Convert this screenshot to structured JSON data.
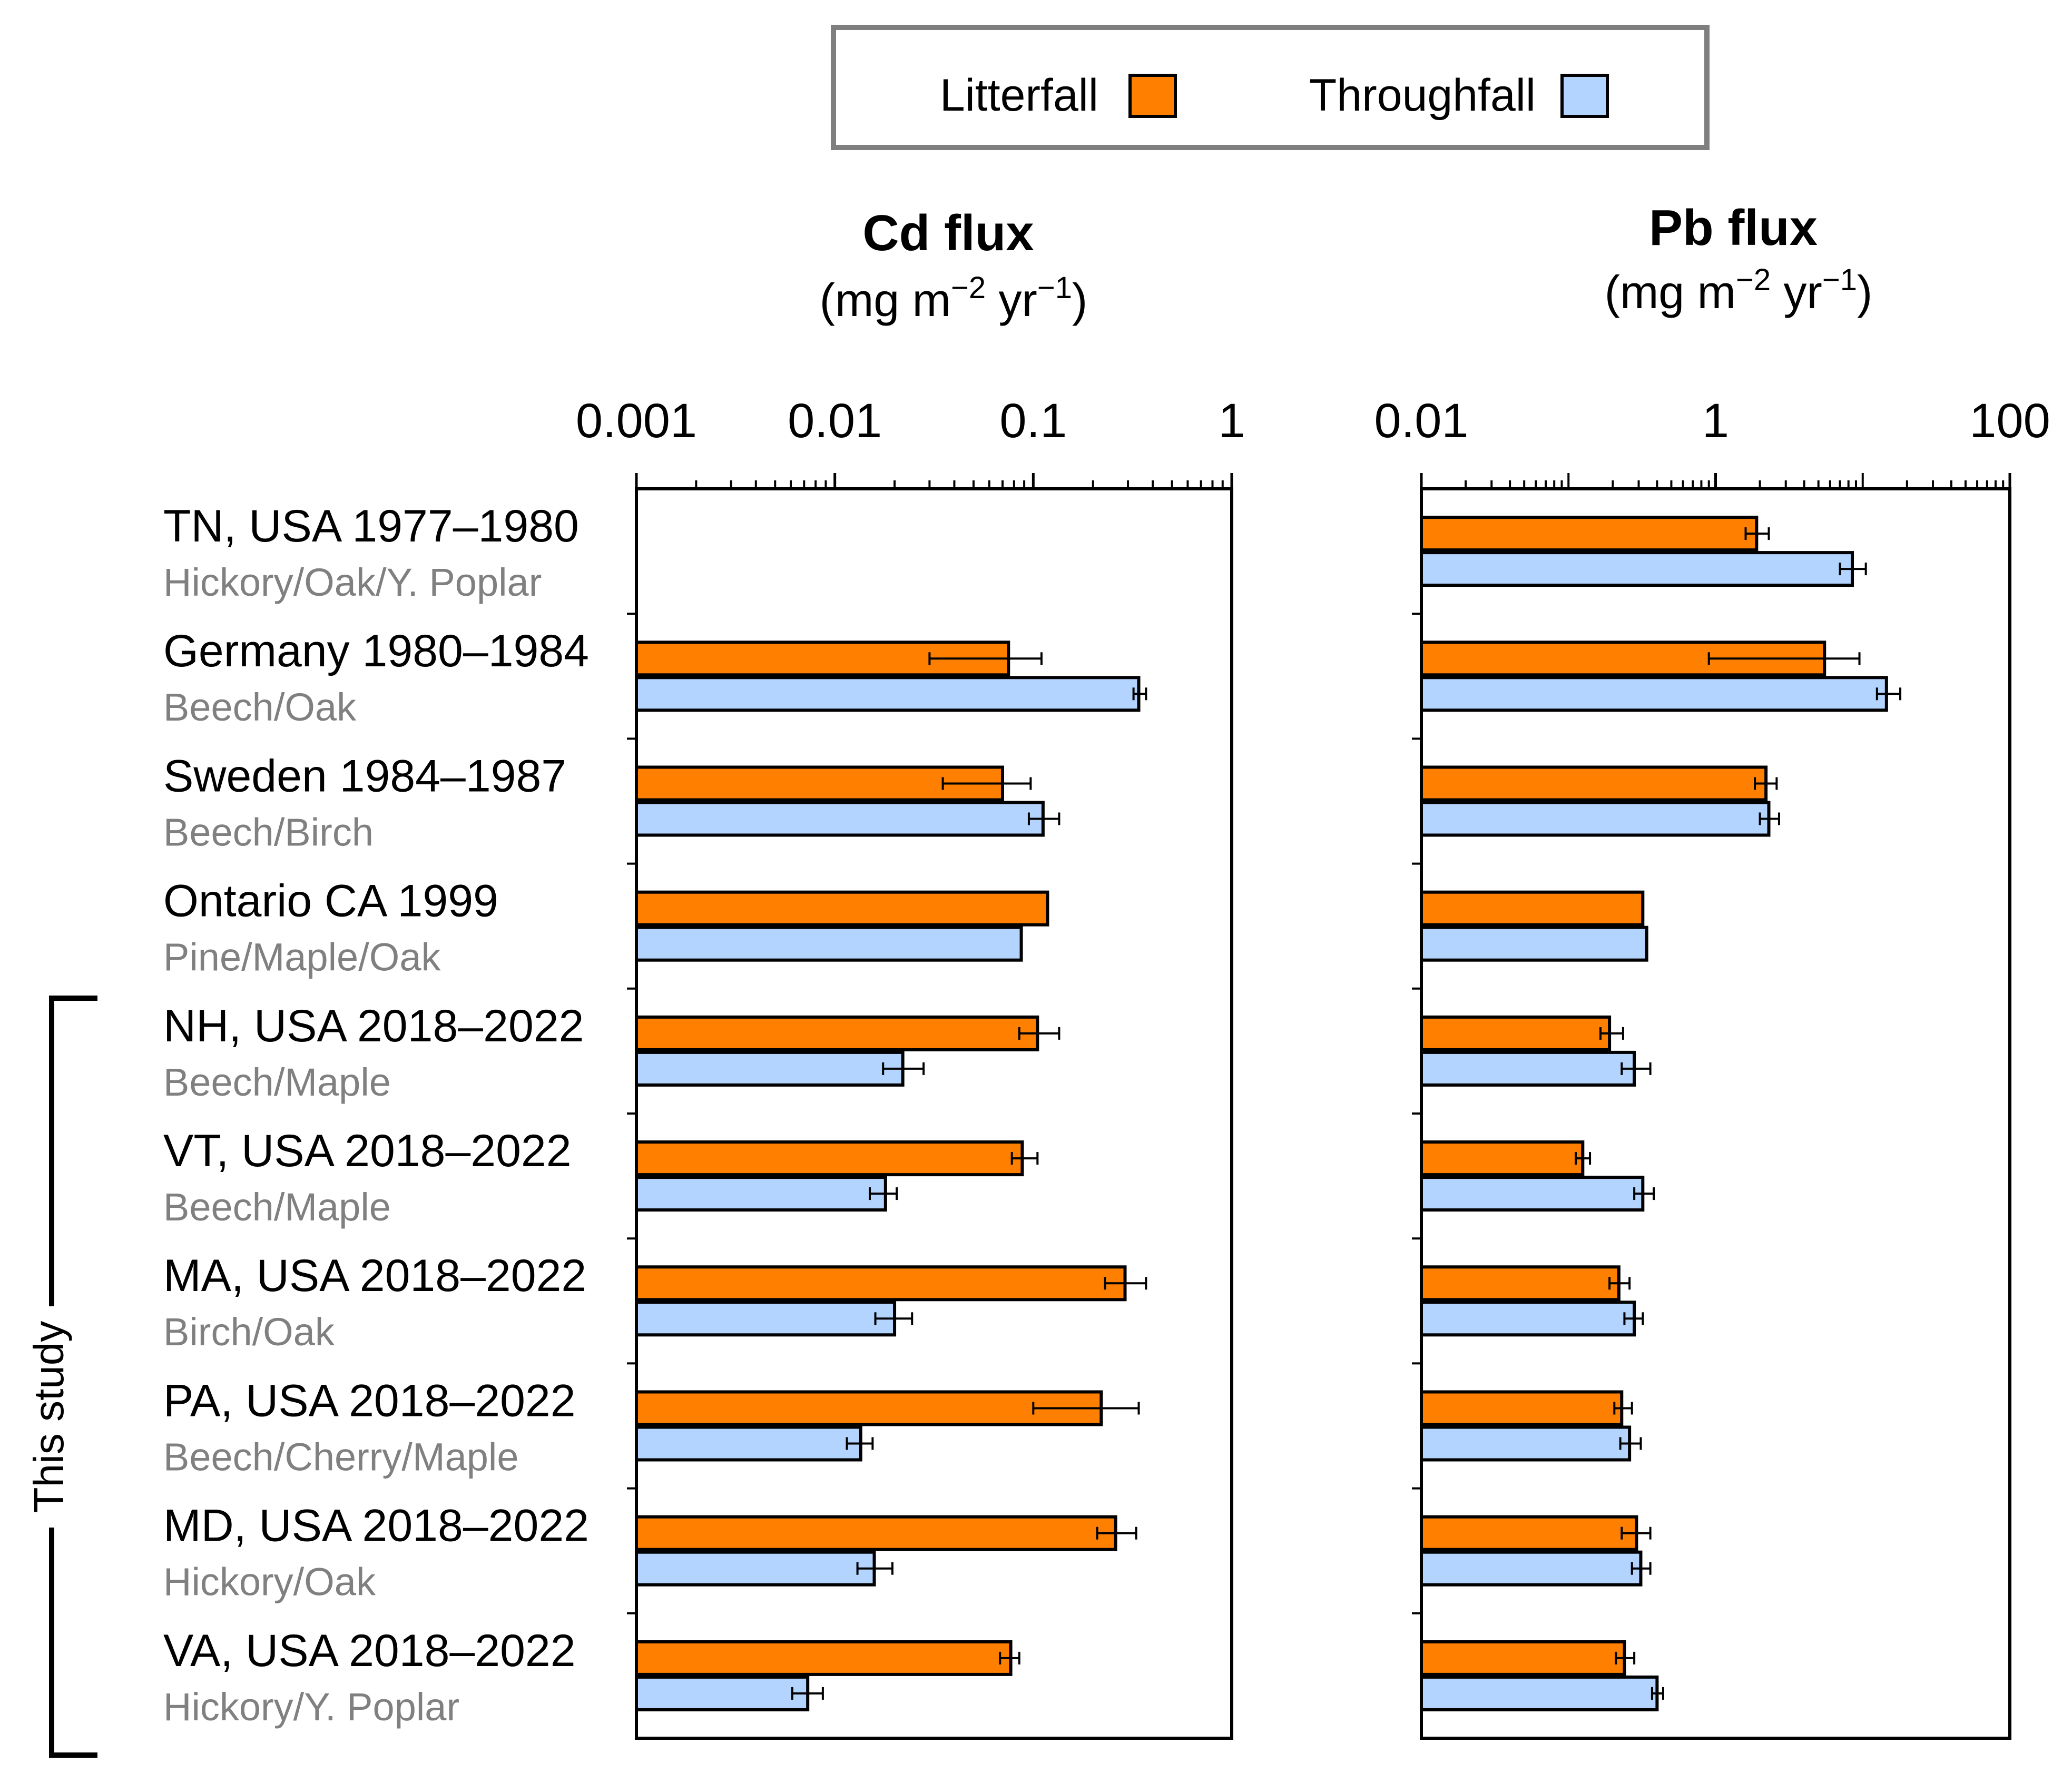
{
  "chart_data": {
    "type": "bar",
    "orientation": "horizontal",
    "scale": "log",
    "legend": {
      "position": "top",
      "entries": [
        {
          "name": "Litterfall",
          "color": "#ff8000"
        },
        {
          "name": "Throughfall",
          "color": "#b3d4ff"
        }
      ]
    },
    "categories": [
      {
        "site": "TN, USA 1977–1980",
        "species": "Hickory/Oak/Y. Poplar"
      },
      {
        "site": "Germany 1980–1984",
        "species": "Beech/Oak"
      },
      {
        "site": "Sweden 1984–1987",
        "species": "Beech/Birch"
      },
      {
        "site": "Ontario CA 1999",
        "species": "Pine/Maple/Oak"
      },
      {
        "site": "NH, USA 2018–2022",
        "species": "Beech/Maple"
      },
      {
        "site": "VT, USA 2018–2022",
        "species": "Beech/Maple"
      },
      {
        "site": "MA, USA 2018–2022",
        "species": "Birch/Oak"
      },
      {
        "site": "PA, USA 2018–2022",
        "species": "Beech/Cherry/Maple"
      },
      {
        "site": "MD, USA 2018–2022",
        "species": "Hickory/Oak"
      },
      {
        "site": "VA, USA 2018–2022",
        "species": "Hickory/Y. Poplar"
      }
    ],
    "bracket_label": "This study",
    "bracket_range": [
      4,
      9
    ],
    "panels": [
      {
        "title": "Cd flux",
        "units_main": "(mg m",
        "units_sup1": "−2",
        "units_mid": " yr",
        "units_sup2": "−1",
        "units_end": ")",
        "xlim": [
          0.001,
          1
        ],
        "ticks": [
          {
            "value": 0.001,
            "label": "0.001"
          },
          {
            "value": 0.01,
            "label": "0.01"
          },
          {
            "value": 0.1,
            "label": "0.1"
          },
          {
            "value": 1,
            "label": "1"
          }
        ],
        "series": [
          {
            "name": "Litterfall",
            "values": [
              null,
              0.075,
              0.07,
              0.118,
              0.105,
              0.088,
              0.29,
              0.22,
              0.26,
              0.077
            ],
            "err_low": [
              null,
              0.03,
              0.035,
              null,
              0.085,
              0.078,
              0.23,
              0.1,
              0.21,
              0.068
            ],
            "err_high": [
              null,
              0.11,
              0.097,
              null,
              0.135,
              0.105,
              0.37,
              0.34,
              0.33,
              0.085
            ]
          },
          {
            "name": "Throughfall",
            "values": [
              null,
              0.34,
              0.112,
              0.087,
              0.022,
              0.018,
              0.02,
              0.0135,
              0.0158,
              0.0073
            ],
            "err_low": [
              null,
              0.32,
              0.095,
              null,
              0.0175,
              0.015,
              0.016,
              0.0115,
              0.013,
              0.0061
            ],
            "err_high": [
              null,
              0.37,
              0.135,
              null,
              0.028,
              0.0205,
              0.0245,
              0.0155,
              0.0195,
              0.0087
            ]
          }
        ]
      },
      {
        "title": "Pb flux",
        "units_main": "(mg m",
        "units_sup1": "−2",
        "units_mid": " yr",
        "units_sup2": "−1",
        "units_end": ")",
        "xlim": [
          0.01,
          100
        ],
        "ticks": [
          {
            "value": 0.01,
            "label": "0.01"
          },
          {
            "value": 1,
            "label": "1"
          },
          {
            "value": 100,
            "label": "100"
          }
        ],
        "series": [
          {
            "name": "Litterfall",
            "values": [
              1.9,
              5.5,
              2.2,
              0.32,
              0.19,
              0.125,
              0.22,
              0.23,
              0.29,
              0.24
            ],
            "err_low": [
              1.6,
              0.9,
              1.85,
              null,
              0.165,
              0.112,
              0.19,
              0.205,
              0.23,
              0.21
            ],
            "err_high": [
              2.3,
              9.5,
              2.6,
              null,
              0.235,
              0.14,
              0.26,
              0.27,
              0.36,
              0.28
            ]
          },
          {
            "name": "Throughfall",
            "values": [
              8.5,
              14.5,
              2.3,
              0.34,
              0.28,
              0.32,
              0.28,
              0.26,
              0.31,
              0.4
            ],
            "err_low": [
              7.0,
              12.5,
              2.0,
              null,
              0.23,
              0.28,
              0.24,
              0.225,
              0.27,
              0.37
            ],
            "err_high": [
              10.5,
              18.0,
              2.7,
              null,
              0.36,
              0.38,
              0.32,
              0.31,
              0.36,
              0.44
            ]
          }
        ]
      }
    ]
  }
}
